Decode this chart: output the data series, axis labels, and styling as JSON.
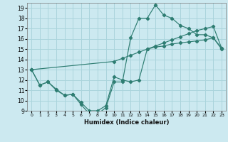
{
  "xlabel": "Humidex (Indice chaleur)",
  "bg_color": "#cce9f0",
  "grid_color": "#aad4dc",
  "line_color": "#2e7d72",
  "xlim": [
    -0.5,
    23.5
  ],
  "ylim": [
    9,
    19.5
  ],
  "xticks": [
    0,
    1,
    2,
    3,
    4,
    5,
    6,
    7,
    8,
    9,
    10,
    11,
    12,
    13,
    14,
    15,
    16,
    17,
    18,
    19,
    20,
    21,
    22,
    23
  ],
  "yticks": [
    9,
    10,
    11,
    12,
    13,
    14,
    15,
    16,
    17,
    18,
    19
  ],
  "line1_x": [
    0,
    1,
    2,
    3,
    4,
    5,
    6,
    7,
    8,
    9,
    10,
    11,
    12,
    13,
    14,
    15,
    16,
    17,
    18,
    19,
    20,
    21,
    22,
    23
  ],
  "line1_y": [
    13,
    11.5,
    11.8,
    11.0,
    10.5,
    10.6,
    9.6,
    8.7,
    8.7,
    9.3,
    11.8,
    11.8,
    16.1,
    18.0,
    18.0,
    19.3,
    18.3,
    18.0,
    17.3,
    17.0,
    16.4,
    16.4,
    16.1,
    15.0
  ],
  "line2_x": [
    0,
    1,
    2,
    3,
    4,
    5,
    6,
    7,
    8,
    9,
    10,
    11,
    12,
    13,
    14,
    15,
    16,
    17,
    18,
    19,
    20,
    21,
    22,
    23
  ],
  "line2_y": [
    13,
    11.5,
    11.8,
    11.1,
    10.5,
    10.6,
    9.8,
    9.0,
    9.0,
    9.5,
    12.3,
    12.0,
    11.8,
    12.0,
    15.0,
    15.2,
    15.3,
    15.5,
    15.6,
    15.7,
    15.8,
    15.9,
    16.1,
    15.1
  ],
  "line3_x": [
    0,
    10,
    11,
    12,
    13,
    14,
    15,
    16,
    17,
    18,
    19,
    20,
    21,
    22,
    23
  ],
  "line3_y": [
    13,
    13.8,
    14.1,
    14.4,
    14.7,
    15.0,
    15.3,
    15.6,
    15.9,
    16.2,
    16.5,
    16.8,
    17.0,
    17.2,
    15.1
  ]
}
